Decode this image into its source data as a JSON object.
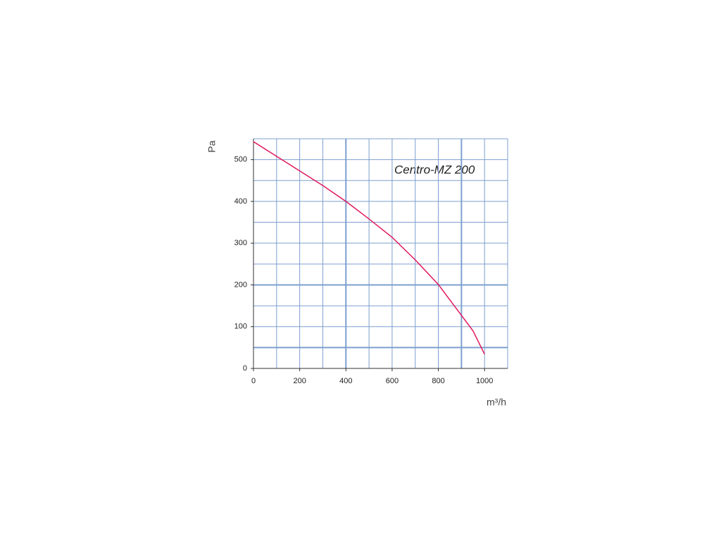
{
  "chart_data": {
    "type": "line",
    "annotation": "Centro-MZ 200",
    "xlabel": "m³/h",
    "ylabel": "Pa",
    "x": [
      0,
      100,
      200,
      300,
      400,
      500,
      600,
      700,
      800,
      900,
      950,
      1000
    ],
    "series": [
      {
        "name": "Centro-MZ 200",
        "color": "#e0195c",
        "values": [
          543,
          508,
          473,
          438,
          400,
          358,
          314,
          260,
          201,
          127,
          90,
          34
        ]
      }
    ],
    "xlim": [
      0,
      1100
    ],
    "ylim": [
      0,
      550
    ],
    "xticks": [
      0,
      200,
      400,
      600,
      800,
      1000
    ],
    "yticks": [
      0,
      100,
      200,
      300,
      400,
      500
    ],
    "xgrid": [
      0,
      100,
      200,
      300,
      400,
      500,
      600,
      700,
      800,
      900,
      1000,
      1100
    ],
    "ygrid": [
      0,
      50,
      100,
      150,
      200,
      250,
      300,
      350,
      400,
      450,
      500,
      550
    ],
    "xgrid_bold": [
      400,
      900
    ],
    "ygrid_bold": [
      50,
      200
    ],
    "grid_color": "#7d9fcf"
  }
}
